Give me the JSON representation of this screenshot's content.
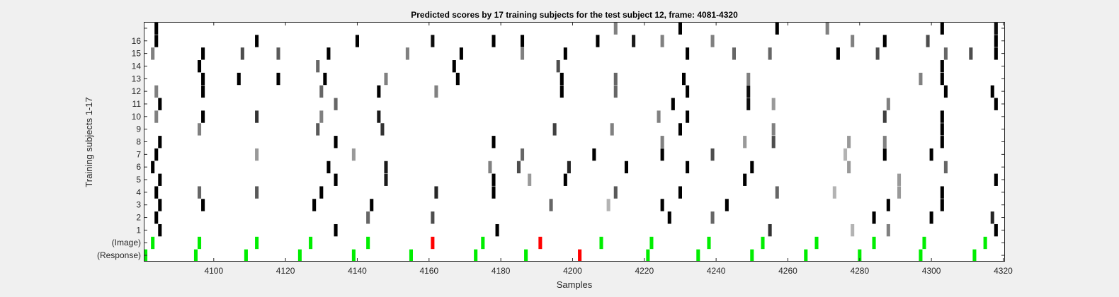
{
  "chart_data": {
    "type": "heatmap",
    "title": "Predicted scores by 17 training subjects for the test subject 12, frame: 4081-4320",
    "xlabel": "Samples",
    "ylabel": "Training subjects 1-17",
    "xlim": [
      4081,
      4320
    ],
    "x_ticks": [
      "4100",
      "4120",
      "4140",
      "4160",
      "4180",
      "4200",
      "4220",
      "4240",
      "4260",
      "4280",
      "4300",
      "4320"
    ],
    "y_tick_labels": [
      "(Response)",
      "(Image)",
      "1",
      "2",
      "3",
      "4",
      "5",
      "6",
      "7",
      "8",
      "9",
      "10",
      "11",
      "12",
      "13",
      "14",
      "15",
      "16",
      ""
    ],
    "grid": false,
    "colors": {
      "green": "#00ee00",
      "red": "#ff0000",
      "background": "#ffffff",
      "figure": "#f0f0f0"
    },
    "rows": [
      {
        "label": "(Response)",
        "marks": [
          [
            4081,
            "g"
          ],
          [
            4095,
            "g"
          ],
          [
            4109,
            "g"
          ],
          [
            4124,
            "g"
          ],
          [
            4139,
            "g"
          ],
          [
            4155,
            "g"
          ],
          [
            4173,
            "g"
          ],
          [
            4187,
            "g"
          ],
          [
            4202,
            "r"
          ],
          [
            4221,
            "g"
          ],
          [
            4235,
            "g"
          ],
          [
            4250,
            "g"
          ],
          [
            4265,
            "g"
          ],
          [
            4280,
            "g"
          ],
          [
            4297,
            "g"
          ],
          [
            4312,
            "g"
          ]
        ]
      },
      {
        "label": "(Image)",
        "marks": [
          [
            4083,
            "g"
          ],
          [
            4096,
            "g"
          ],
          [
            4112,
            "g"
          ],
          [
            4127,
            "g"
          ],
          [
            4143,
            "g"
          ],
          [
            4161,
            "r"
          ],
          [
            4175,
            "g"
          ],
          [
            4191,
            "r"
          ],
          [
            4208,
            "g"
          ],
          [
            4222,
            "g"
          ],
          [
            4238,
            "g"
          ],
          [
            4253,
            "g"
          ],
          [
            4268,
            "g"
          ],
          [
            4284,
            "g"
          ],
          [
            4298,
            "g"
          ],
          [
            4315,
            "g"
          ]
        ]
      },
      {
        "label": "1",
        "marks": [
          [
            4085,
            0
          ],
          [
            4134,
            0
          ],
          [
            4179,
            0
          ],
          [
            4255,
            0.2
          ],
          [
            4278,
            0.7
          ],
          [
            4288,
            0.5
          ],
          [
            4318,
            0
          ]
        ]
      },
      {
        "label": "2",
        "marks": [
          [
            4084,
            0
          ],
          [
            4143,
            0.4
          ],
          [
            4161,
            0.3
          ],
          [
            4227,
            0
          ],
          [
            4239,
            0.4
          ],
          [
            4284,
            0
          ],
          [
            4300,
            0
          ],
          [
            4317,
            0.15
          ]
        ]
      },
      {
        "label": "3",
        "marks": [
          [
            4085,
            0
          ],
          [
            4097,
            0
          ],
          [
            4128,
            0
          ],
          [
            4144,
            0
          ],
          [
            4194,
            0.4
          ],
          [
            4210,
            0.7
          ],
          [
            4225,
            0
          ],
          [
            4243,
            0
          ],
          [
            4288,
            0
          ],
          [
            4303,
            0
          ]
        ]
      },
      {
        "label": "4",
        "marks": [
          [
            4084,
            0
          ],
          [
            4096,
            0.4
          ],
          [
            4112,
            0.35
          ],
          [
            4130,
            0
          ],
          [
            4162,
            0.15
          ],
          [
            4178,
            0
          ],
          [
            4212,
            0.35
          ],
          [
            4230,
            0
          ],
          [
            4257,
            0.4
          ],
          [
            4273,
            0.7
          ],
          [
            4291,
            0.6
          ],
          [
            4303,
            0
          ]
        ]
      },
      {
        "label": "5",
        "marks": [
          [
            4085,
            0
          ],
          [
            4134,
            0
          ],
          [
            4148,
            0.1
          ],
          [
            4178,
            0
          ],
          [
            4188,
            0.6
          ],
          [
            4198,
            0
          ],
          [
            4248,
            0
          ],
          [
            4291,
            0.6
          ],
          [
            4318,
            0
          ]
        ]
      },
      {
        "label": "6",
        "marks": [
          [
            4083,
            0
          ],
          [
            4132,
            0
          ],
          [
            4148,
            0.1
          ],
          [
            4177,
            0.5
          ],
          [
            4185,
            0.3
          ],
          [
            4199,
            0.15
          ],
          [
            4215,
            0
          ],
          [
            4232,
            0
          ],
          [
            4250,
            0
          ],
          [
            4277,
            0.6
          ],
          [
            4304,
            0.4
          ]
        ]
      },
      {
        "label": "7",
        "marks": [
          [
            4084,
            0
          ],
          [
            4112,
            0.6
          ],
          [
            4139,
            0.6
          ],
          [
            4186,
            0.4
          ],
          [
            4206,
            0
          ],
          [
            4225,
            0
          ],
          [
            4239,
            0.3
          ],
          [
            4276,
            0.7
          ],
          [
            4287,
            0
          ],
          [
            4300,
            0
          ]
        ]
      },
      {
        "label": "8",
        "marks": [
          [
            4085,
            0
          ],
          [
            4134,
            0
          ],
          [
            4178,
            0
          ],
          [
            4225,
            0.5
          ],
          [
            4248,
            0.6
          ],
          [
            4256,
            0.3
          ],
          [
            4277,
            0.6
          ],
          [
            4287,
            0.5
          ],
          [
            4303,
            0
          ]
        ]
      },
      {
        "label": "9",
        "marks": [
          [
            4096,
            0.5
          ],
          [
            4129,
            0.35
          ],
          [
            4147,
            0.2
          ],
          [
            4195,
            0.25
          ],
          [
            4211,
            0.5
          ],
          [
            4230,
            0
          ],
          [
            4256,
            0.5
          ],
          [
            4303,
            0
          ]
        ]
      },
      {
        "label": "10",
        "marks": [
          [
            4084,
            0.5
          ],
          [
            4097,
            0
          ],
          [
            4112,
            0.2
          ],
          [
            4130,
            0.5
          ],
          [
            4146,
            0.1
          ],
          [
            4224,
            0.5
          ],
          [
            4232,
            0
          ],
          [
            4287,
            0.25
          ],
          [
            4303,
            0
          ]
        ]
      },
      {
        "label": "11",
        "marks": [
          [
            4085,
            0
          ],
          [
            4134,
            0.4
          ],
          [
            4228,
            0
          ],
          [
            4249,
            0.05
          ],
          [
            4256,
            0.6
          ],
          [
            4288,
            0.5
          ],
          [
            4318,
            0
          ]
        ]
      },
      {
        "label": "12",
        "marks": [
          [
            4084,
            0.5
          ],
          [
            4097,
            0
          ],
          [
            4130,
            0.4
          ],
          [
            4146,
            0
          ],
          [
            4162,
            0.5
          ],
          [
            4197,
            0
          ],
          [
            4212,
            0.4
          ],
          [
            4232,
            0
          ],
          [
            4249,
            0.05
          ],
          [
            4304,
            0
          ],
          [
            4317,
            0
          ]
        ]
      },
      {
        "label": "13",
        "marks": [
          [
            4097,
            0
          ],
          [
            4107,
            0
          ],
          [
            4118,
            0
          ],
          [
            4131,
            0
          ],
          [
            4148,
            0.5
          ],
          [
            4168,
            0
          ],
          [
            4197,
            0
          ],
          [
            4212,
            0.4
          ],
          [
            4231,
            0
          ],
          [
            4249,
            0.5
          ],
          [
            4297,
            0.5
          ],
          [
            4303,
            0
          ]
        ]
      },
      {
        "label": "14",
        "marks": [
          [
            4096,
            0
          ],
          [
            4129,
            0.4
          ],
          [
            4167,
            0
          ],
          [
            4196,
            0.3
          ],
          [
            4303,
            0
          ]
        ]
      },
      {
        "label": "15",
        "marks": [
          [
            4083,
            0.5
          ],
          [
            4097,
            0
          ],
          [
            4108,
            0.3
          ],
          [
            4118,
            0.35
          ],
          [
            4132,
            0
          ],
          [
            4154,
            0.5
          ],
          [
            4169,
            0
          ],
          [
            4186,
            0.5
          ],
          [
            4198,
            0
          ],
          [
            4232,
            0
          ],
          [
            4245,
            0.4
          ],
          [
            4255,
            0.4
          ],
          [
            4274,
            0
          ],
          [
            4285,
            0.3
          ],
          [
            4304,
            0.4
          ],
          [
            4311,
            0.3
          ],
          [
            4318,
            0
          ]
        ]
      },
      {
        "label": "16",
        "marks": [
          [
            4084,
            0
          ],
          [
            4112,
            0
          ],
          [
            4140,
            0
          ],
          [
            4161,
            0.05
          ],
          [
            4178,
            0
          ],
          [
            4186,
            0
          ],
          [
            4207,
            0
          ],
          [
            4217,
            0.1
          ],
          [
            4225,
            0.5
          ],
          [
            4239,
            0.5
          ],
          [
            4278,
            0.5
          ],
          [
            4287,
            0
          ],
          [
            4299,
            0.3
          ],
          [
            4318,
            0
          ]
        ]
      },
      {
        "label": "",
        "marks": [
          [
            4084,
            0
          ],
          [
            4212,
            0.5
          ],
          [
            4230,
            0
          ],
          [
            4257,
            0
          ],
          [
            4271,
            0.5
          ],
          [
            4303,
            0
          ],
          [
            4318,
            0.05
          ]
        ]
      }
    ]
  }
}
